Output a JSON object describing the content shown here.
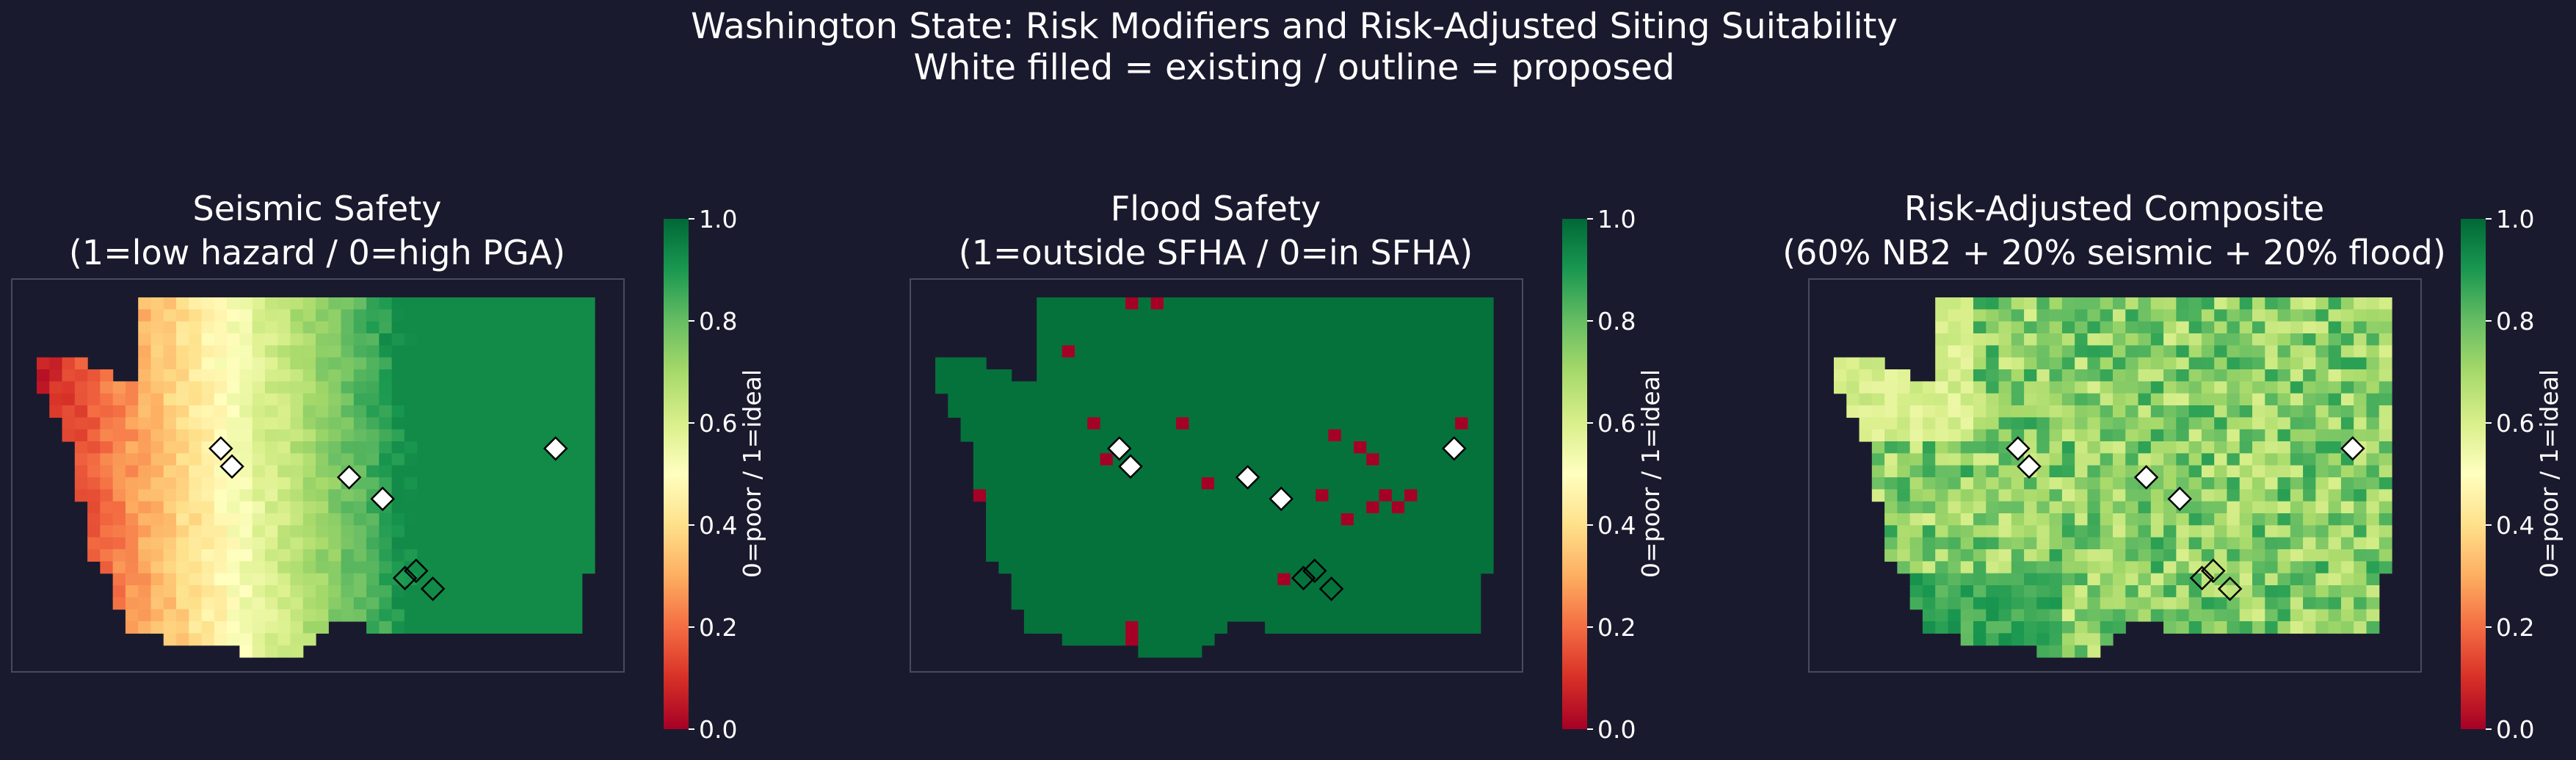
{
  "title_line1": "Washington State: Risk Modifiers and Risk-Adjusted Siting Suitability",
  "title_line2": "White filled = existing  /  outline = proposed",
  "colors": {
    "background": "#1a1a2e",
    "frame": "#4a4a5e",
    "colormap": [
      "#a50026",
      "#d73027",
      "#f46d43",
      "#fdae61",
      "#fee08b",
      "#ffffbf",
      "#d9ef8b",
      "#a6d96a",
      "#66bd63",
      "#1a9850",
      "#006837"
    ]
  },
  "chart_data": [
    {
      "type": "heatmap",
      "title_line1": "Seismic Safety",
      "title_line2": "(1=low hazard / 0=high PGA)",
      "colorbar_label": "0=poor / 1=ideal",
      "colorbar_ticks": [
        "0.0",
        "0.2",
        "0.4",
        "0.6",
        "0.8",
        "1.0"
      ],
      "value_range": [
        0,
        1
      ],
      "pattern": "west-east gradient",
      "grid": false,
      "sites": [
        {
          "status": "existing",
          "u": 0.33,
          "v": 0.42
        },
        {
          "status": "existing",
          "u": 0.35,
          "v": 0.47
        },
        {
          "status": "existing",
          "u": 0.56,
          "v": 0.5
        },
        {
          "status": "existing",
          "u": 0.62,
          "v": 0.56
        },
        {
          "status": "existing",
          "u": 0.93,
          "v": 0.42
        },
        {
          "status": "proposed",
          "u": 0.66,
          "v": 0.78
        },
        {
          "status": "proposed",
          "u": 0.68,
          "v": 0.76
        },
        {
          "status": "proposed",
          "u": 0.71,
          "v": 0.81
        }
      ]
    },
    {
      "type": "heatmap",
      "title_line1": "Flood Safety",
      "title_line2": "(1=outside SFHA / 0=in SFHA)",
      "colorbar_label": "0=poor / 1=ideal",
      "colorbar_ticks": [
        "0.0",
        "0.2",
        "0.4",
        "0.6",
        "0.8",
        "1.0"
      ],
      "value_range": [
        0,
        1
      ],
      "pattern": "mostly 1 with scattered 0 cells",
      "grid": false,
      "flood_cells": [
        [
          15,
          0
        ],
        [
          17,
          0
        ],
        [
          10,
          4
        ],
        [
          1,
          14
        ],
        [
          1,
          16
        ],
        [
          3,
          16
        ],
        [
          12,
          10
        ],
        [
          13,
          13
        ],
        [
          21,
          15
        ],
        [
          19,
          10
        ],
        [
          41,
          10
        ],
        [
          33,
          12
        ],
        [
          34,
          13
        ],
        [
          30,
          16
        ],
        [
          34,
          17
        ],
        [
          35,
          16
        ],
        [
          37,
          16
        ],
        [
          36,
          17
        ],
        [
          32,
          18
        ],
        [
          27,
          23
        ],
        [
          15,
          27
        ],
        [
          15,
          28
        ],
        [
          31,
          11
        ]
      ],
      "sites": [
        {
          "status": "existing",
          "u": 0.33,
          "v": 0.42
        },
        {
          "status": "existing",
          "u": 0.35,
          "v": 0.47
        },
        {
          "status": "existing",
          "u": 0.56,
          "v": 0.5
        },
        {
          "status": "existing",
          "u": 0.62,
          "v": 0.56
        },
        {
          "status": "existing",
          "u": 0.93,
          "v": 0.42
        },
        {
          "status": "proposed",
          "u": 0.66,
          "v": 0.78
        },
        {
          "status": "proposed",
          "u": 0.68,
          "v": 0.76
        },
        {
          "status": "proposed",
          "u": 0.71,
          "v": 0.81
        }
      ]
    },
    {
      "type": "heatmap",
      "title_line1": "Risk-Adjusted Composite",
      "title_line2": "(60% NB2 + 20% seismic + 20% flood)",
      "colorbar_label": "0=poor / 1=ideal",
      "colorbar_ticks": [
        "0.0",
        "0.2",
        "0.4",
        "0.6",
        "0.8",
        "1.0"
      ],
      "value_range": [
        0,
        1
      ],
      "pattern": "mottled 0.55-0.9",
      "grid": false,
      "sites": [
        {
          "status": "existing",
          "u": 0.33,
          "v": 0.42
        },
        {
          "status": "existing",
          "u": 0.35,
          "v": 0.47
        },
        {
          "status": "existing",
          "u": 0.56,
          "v": 0.5
        },
        {
          "status": "existing",
          "u": 0.62,
          "v": 0.56
        },
        {
          "status": "existing",
          "u": 0.93,
          "v": 0.42
        },
        {
          "status": "proposed",
          "u": 0.66,
          "v": 0.78
        },
        {
          "status": "proposed",
          "u": 0.68,
          "v": 0.76
        },
        {
          "status": "proposed",
          "u": 0.71,
          "v": 0.81
        }
      ]
    }
  ]
}
